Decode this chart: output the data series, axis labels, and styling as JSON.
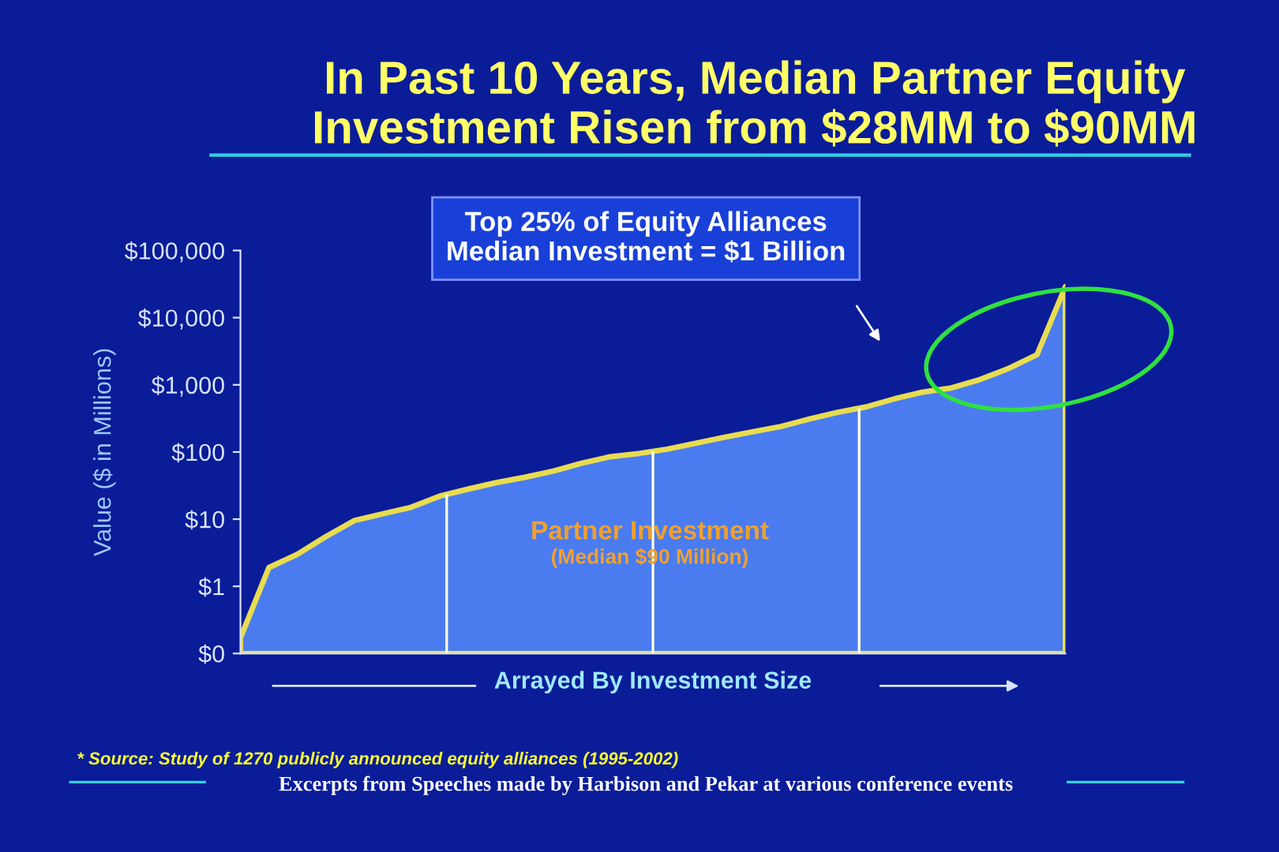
{
  "chart_data": {
    "type": "area",
    "title": "In Past 10 Years, Median Partner Equity\nInvestment Risen from $28MM to $90MM",
    "xlabel": "Arrayed By Investment Size",
    "ylabel": "Value ($ in Millions)",
    "categories": [
      null,
      null,
      null,
      null,
      null,
      null,
      null,
      null,
      null,
      null,
      null,
      null,
      null,
      null,
      null,
      null,
      null,
      null,
      null,
      null,
      null,
      null,
      null,
      null,
      null,
      null,
      null,
      null,
      null,
      null
    ],
    "series": [
      {
        "color": "#4a7cf0",
        "values": [
          0.17,
          1.9,
          3,
          5.5,
          9.5,
          12,
          15,
          22,
          28,
          35,
          42,
          52,
          68,
          85,
          95,
          110,
          135,
          165,
          200,
          240,
          310,
          390,
          470,
          620,
          780,
          900,
          1200,
          1750,
          2800,
          29000
        ]
      }
    ],
    "log": "y",
    "ylim": [
      0.1,
      100000
    ],
    "yticks": [
      {
        "value": 0.1,
        "label": "$0"
      },
      {
        "value": 1,
        "label": "$1"
      },
      {
        "value": 10,
        "label": "$10"
      },
      {
        "value": 100,
        "label": "$100"
      },
      {
        "value": 1000,
        "label": "$1,000"
      },
      {
        "value": 10000,
        "label": "$10,000"
      },
      {
        "value": 100000,
        "label": "$100,000"
      }
    ],
    "tick_labels": "y",
    "grid": false,
    "annotations": [
      "Top 25% of Equity Alliances\nMedian Investment = $1 Billion",
      "Partner Investment",
      "(Median $90 Million)",
      "* Source: Study of 1270 publicly announced equity alliances (1995-2002)",
      "Excerpts from Speeches made by Harbison and Pekar at various conference events"
    ]
  }
}
